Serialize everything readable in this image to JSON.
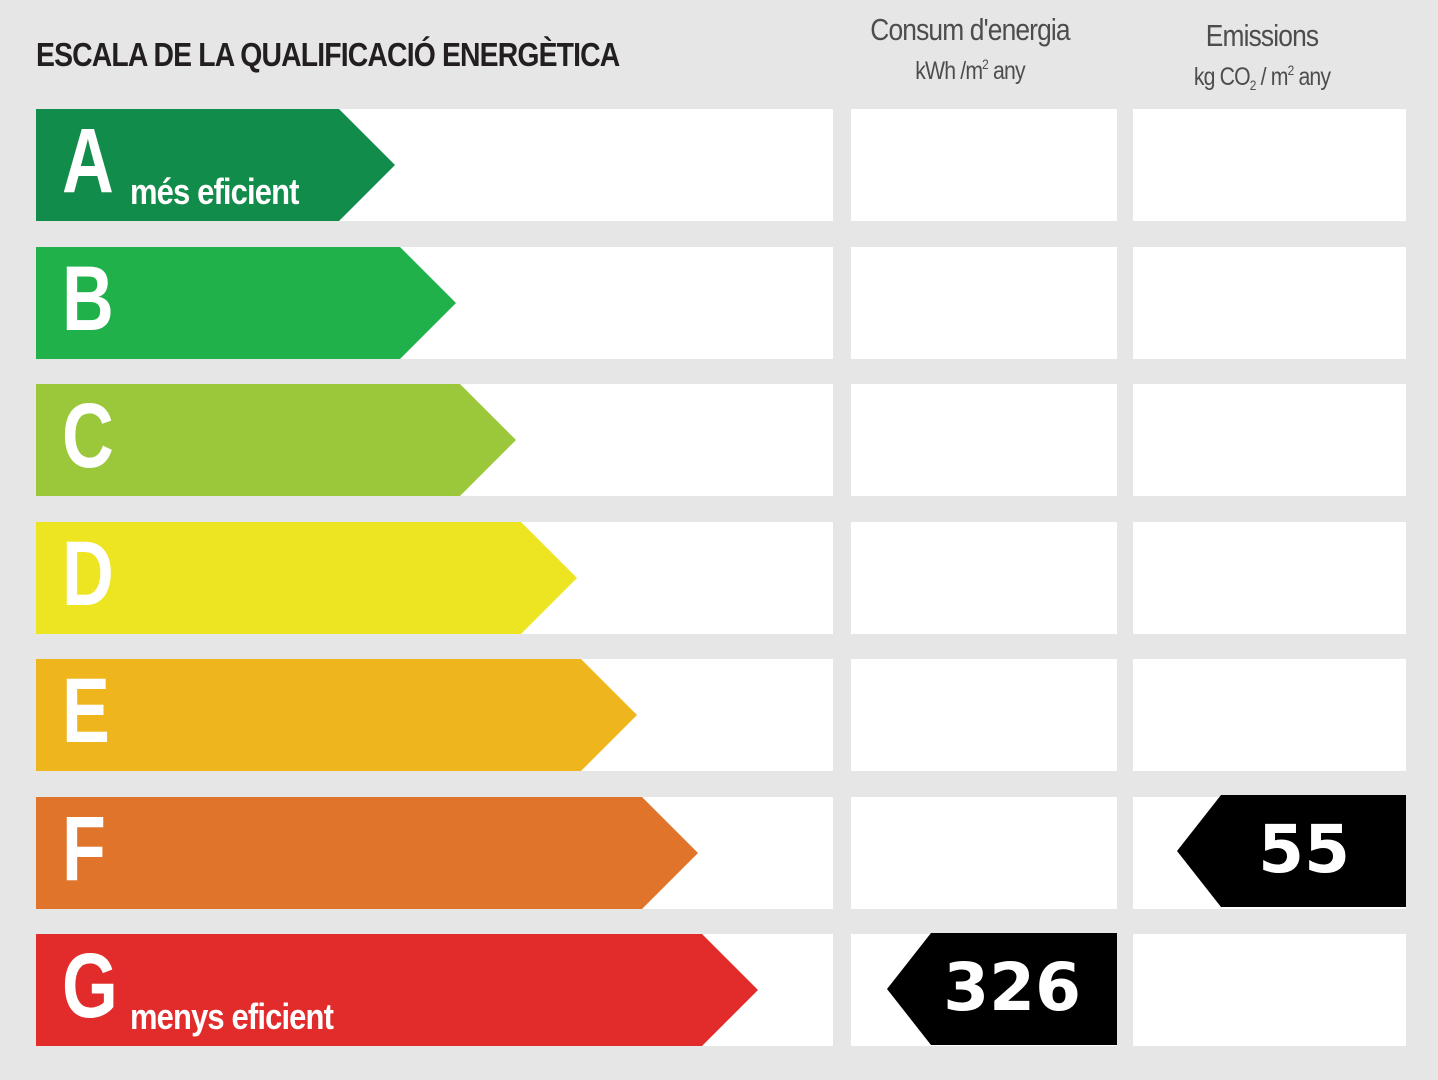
{
  "title": "ESCALA DE LA QUALIFICACIÓ ENERGÈTICA",
  "columns": {
    "consum": {
      "title": "Consum d'energia",
      "unit_pre": "kWh /m",
      "unit_sup": "2",
      "unit_post": " any"
    },
    "emissions": {
      "title": "Emissions",
      "unit_kg": "kg CO",
      "unit_sub": "2",
      "unit_mid": " / m",
      "unit_sup": "2",
      "unit_post": " any"
    }
  },
  "ratings": [
    {
      "letter": "A",
      "label": "més eficient",
      "color": "#128c4a"
    },
    {
      "letter": "B",
      "label": "",
      "color": "#21b14b"
    },
    {
      "letter": "C",
      "label": "",
      "color": "#9bc83b"
    },
    {
      "letter": "D",
      "label": "",
      "color": "#ede521"
    },
    {
      "letter": "E",
      "label": "",
      "color": "#efb51c"
    },
    {
      "letter": "F",
      "label": "",
      "color": "#e0742a"
    },
    {
      "letter": "G",
      "label": "menys eficient",
      "color": "#e22b2b"
    }
  ],
  "consum_value": "326",
  "consum_rating": "G",
  "emissions_value": "55",
  "emissions_rating": "F"
}
